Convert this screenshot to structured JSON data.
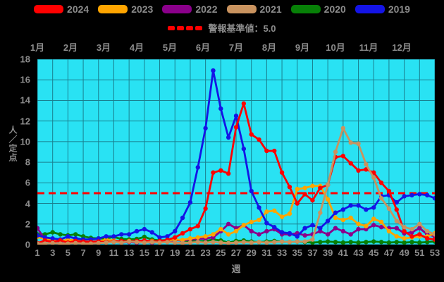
{
  "page": {
    "background": "#000000",
    "text_color": "#8c8c8c"
  },
  "legend": {
    "items": [
      {
        "label": "2024",
        "color": "#FF0000"
      },
      {
        "label": "2023",
        "color": "#FFA500"
      },
      {
        "label": "2022",
        "color": "#8B008B"
      },
      {
        "label": "2021",
        "color": "#C9935F"
      },
      {
        "label": "2020",
        "color": "#078007"
      },
      {
        "label": "2019",
        "color": "#1414E6"
      }
    ],
    "threshold_label": "警報基準値：5.0"
  },
  "chart_data": {
    "type": "line",
    "title": "",
    "xlabel": "週",
    "ylabel": "人／定点",
    "ylim": [
      0,
      18
    ],
    "y_ticks": [
      0,
      2,
      4,
      6,
      8,
      10,
      12,
      14,
      16,
      18
    ],
    "x_ticks": [
      1,
      3,
      5,
      7,
      9,
      11,
      13,
      15,
      17,
      19,
      21,
      23,
      25,
      27,
      29,
      31,
      33,
      35,
      37,
      39,
      41,
      43,
      45,
      47,
      49,
      51,
      53
    ],
    "x_range_weeks": [
      1,
      53
    ],
    "grid": {
      "visible": true,
      "color": "#1A7F8F",
      "x_step_weeks": 2,
      "y_step": 2
    },
    "plot_bg": "#29E2F3",
    "months": [
      {
        "label": "1月",
        "week": 1
      },
      {
        "label": "2月",
        "week": 5.33
      },
      {
        "label": "3月",
        "week": 9.67
      },
      {
        "label": "4月",
        "week": 14
      },
      {
        "label": "5月",
        "week": 18.33
      },
      {
        "label": "6月",
        "week": 22.67
      },
      {
        "label": "7月",
        "week": 27
      },
      {
        "label": "8月",
        "week": 31.33
      },
      {
        "label": "9月",
        "week": 35.67
      },
      {
        "label": "10月",
        "week": 40
      },
      {
        "label": "11月",
        "week": 44.33
      },
      {
        "label": "12月",
        "week": 48.67
      }
    ],
    "threshold": {
      "value": 5.0,
      "label": "警報基準値：5.0",
      "color": "#FF0000",
      "style": "dashed"
    },
    "weeks": [
      1,
      2,
      3,
      4,
      5,
      6,
      7,
      8,
      9,
      10,
      11,
      12,
      13,
      14,
      15,
      16,
      17,
      18,
      19,
      20,
      21,
      22,
      23,
      24,
      25,
      26,
      27,
      28,
      29,
      30,
      31,
      32,
      33,
      34,
      35,
      36,
      37,
      38,
      39,
      40,
      41,
      42,
      43,
      44,
      45,
      46,
      47,
      48,
      49,
      50,
      51,
      52,
      53
    ],
    "series": [
      {
        "name": "2024",
        "color": "#FF0000",
        "values": [
          0.15,
          0.4,
          0.25,
          0.4,
          0.2,
          0.35,
          0.3,
          0.25,
          0.3,
          0.25,
          0.3,
          0.35,
          0.3,
          0.35,
          0.4,
          0.3,
          0.35,
          0.45,
          0.7,
          1.1,
          1.5,
          1.8,
          3.5,
          7.0,
          7.2,
          6.9,
          11.4,
          13.7,
          10.7,
          10.2,
          9.1,
          9.1,
          7.0,
          5.6,
          4.0,
          4.9,
          4.3,
          5.5,
          5.8,
          8.5,
          8.6,
          7.9,
          7.2,
          7.3,
          7.0,
          6.0,
          5.2,
          3.4,
          1.3,
          0.8,
          1.0,
          0.6,
          0.5
        ]
      },
      {
        "name": "2023",
        "color": "#FFA500",
        "values": [
          0.75,
          0.55,
          0.5,
          0.45,
          0.4,
          0.5,
          0.35,
          0.3,
          0.3,
          0.5,
          0.4,
          0.3,
          0.35,
          0.3,
          0.4,
          0.35,
          0.3,
          0.4,
          0.5,
          0.45,
          0.6,
          0.7,
          0.8,
          1.0,
          1.5,
          1.0,
          1.3,
          1.9,
          2.2,
          2.4,
          3.2,
          3.3,
          2.7,
          3.0,
          5.4,
          5.5,
          5.7,
          5.7,
          4.4,
          2.6,
          2.4,
          2.6,
          2.0,
          1.8,
          2.5,
          2.2,
          1.3,
          0.8,
          0.6,
          0.7,
          0.8,
          0.8,
          1.1
        ]
      },
      {
        "name": "2022",
        "color": "#8B008B",
        "values": [
          1.6,
          0.5,
          0.4,
          0.3,
          0.45,
          0.3,
          0.25,
          0.3,
          0.35,
          0.3,
          0.25,
          0.2,
          0.25,
          0.2,
          0.25,
          0.2,
          0.25,
          0.3,
          0.45,
          0.4,
          0.5,
          0.55,
          0.6,
          0.7,
          1.3,
          2.0,
          1.6,
          1.9,
          1.3,
          1.0,
          1.3,
          1.5,
          1.0,
          1.0,
          1.1,
          0.9,
          1.0,
          1.3,
          1.0,
          1.6,
          1.3,
          1.0,
          1.5,
          1.5,
          1.9,
          1.7,
          1.6,
          1.6,
          1.1,
          1.2,
          1.6,
          1.0,
          0.8
        ]
      },
      {
        "name": "2021",
        "color": "#C9935F",
        "values": [
          0.1,
          0.1,
          0.15,
          0.1,
          0.1,
          0.15,
          0.1,
          0.1,
          0.15,
          0.2,
          0.25,
          0.2,
          0.3,
          0.25,
          0.2,
          0.25,
          0.2,
          0.25,
          0.2,
          0.15,
          0.2,
          0.25,
          0.2,
          0.25,
          0.2,
          0.15,
          0.2,
          0.25,
          0.2,
          0.25,
          0.2,
          0.25,
          0.3,
          0.25,
          0.3,
          0.3,
          0.5,
          3.1,
          5.8,
          9.0,
          11.3,
          9.9,
          9.8,
          7.8,
          6.5,
          4.5,
          3.5,
          2.3,
          1.7,
          1.5,
          2.0,
          1.3,
          1.0
        ]
      },
      {
        "name": "2020",
        "color": "#078007",
        "values": [
          1.0,
          1.0,
          1.2,
          1.0,
          0.9,
          1.0,
          0.8,
          0.65,
          0.6,
          0.6,
          0.75,
          0.55,
          0.5,
          0.55,
          0.75,
          0.5,
          0.4,
          0.45,
          0.5,
          0.4,
          0.35,
          0.3,
          0.35,
          0.5,
          0.4,
          0.2,
          0.35,
          0.4,
          0.3,
          0.25,
          0.3,
          0.35,
          0.3,
          0.25,
          0.3,
          0.25,
          0.2,
          0.25,
          0.3,
          0.25,
          0.2,
          0.25,
          0.2,
          0.25,
          0.3,
          0.25,
          0.2,
          0.25,
          0.2,
          0.25,
          0.2,
          0.25,
          0.3
        ]
      },
      {
        "name": "2019",
        "color": "#1414E6",
        "values": [
          0.9,
          0.7,
          0.6,
          0.5,
          0.8,
          0.6,
          0.5,
          0.5,
          0.6,
          0.8,
          0.8,
          1.0,
          1.0,
          1.3,
          1.5,
          1.2,
          0.7,
          0.8,
          1.3,
          2.6,
          4.1,
          7.5,
          11.3,
          16.9,
          13.2,
          10.4,
          12.5,
          9.3,
          5.2,
          3.6,
          2.1,
          1.7,
          1.2,
          1.1,
          0.8,
          1.6,
          1.9,
          1.6,
          2.3,
          3.1,
          3.4,
          3.8,
          3.8,
          3.4,
          3.6,
          4.7,
          4.8,
          4.1,
          4.7,
          4.8,
          4.9,
          4.8,
          4.5
        ]
      }
    ],
    "draw_order": [
      "2020",
      "2022",
      "2023",
      "2019",
      "2024",
      "2021"
    ],
    "legend_position": "top"
  }
}
